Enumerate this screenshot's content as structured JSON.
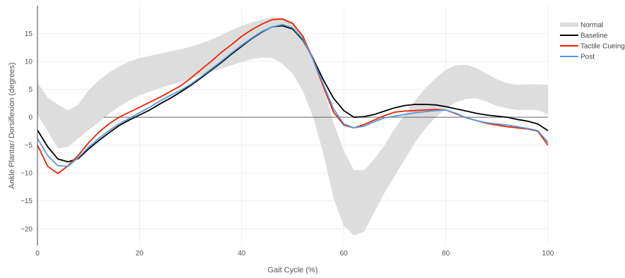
{
  "chart_data": {
    "type": "line",
    "title": "",
    "xlabel": "Gait Cycle (%)",
    "ylabel": "Ankle Plantar/ Dorsiflexion (degrees)",
    "xlim": [
      0,
      100
    ],
    "ylim": [
      -23,
      20
    ],
    "xticks": [
      0,
      20,
      40,
      60,
      80,
      100
    ],
    "yticks": [
      -20,
      -15,
      -10,
      -5,
      0,
      5,
      10,
      15
    ],
    "x_tick_labels": [
      "0",
      "20",
      "40",
      "60",
      "80",
      "100"
    ],
    "y_tick_labels": [
      "−20",
      "−15",
      "−10",
      "−5",
      "0",
      "5",
      "10",
      "15"
    ],
    "grid": true,
    "zero_line": true,
    "legend_position": "top-right",
    "band": {
      "name": "Normal",
      "color": "#dddddd",
      "x": [
        0,
        2,
        4,
        6,
        8,
        10,
        12,
        14,
        16,
        18,
        20,
        22,
        24,
        26,
        28,
        30,
        32,
        34,
        36,
        38,
        40,
        42,
        44,
        46,
        48,
        50,
        52,
        54,
        56,
        58,
        60,
        62,
        64,
        66,
        68,
        70,
        72,
        74,
        76,
        78,
        80,
        82,
        84,
        86,
        88,
        90,
        92,
        94,
        96,
        98,
        100
      ],
      "upper": [
        6.2,
        3.5,
        2.3,
        1.2,
        2.3,
        4.8,
        6.6,
        8.0,
        9.1,
        10.0,
        10.6,
        11.0,
        11.4,
        11.8,
        12.2,
        12.6,
        13.2,
        13.9,
        14.7,
        15.6,
        16.4,
        17.0,
        17.5,
        17.9,
        17.8,
        17.1,
        14.8,
        11.0,
        5.5,
        -1.0,
        -6.0,
        -9.5,
        -9.5,
        -7.5,
        -5.0,
        -2.0,
        0.5,
        3.0,
        5.2,
        7.0,
        8.5,
        9.3,
        9.4,
        8.8,
        7.8,
        6.8,
        6.1,
        5.8,
        5.9,
        5.9,
        5.8
      ],
      "lower": [
        0.5,
        -2.5,
        -5.6,
        -5.3,
        -3.8,
        -2.3,
        -0.9,
        0.6,
        1.9,
        3.0,
        3.9,
        4.6,
        5.2,
        5.8,
        6.3,
        6.9,
        7.5,
        8.1,
        8.7,
        9.3,
        9.9,
        10.4,
        10.7,
        10.6,
        9.6,
        7.8,
        4.7,
        0.0,
        -6.5,
        -14.5,
        -19.5,
        -21.2,
        -20.5,
        -17.0,
        -13.5,
        -10.5,
        -7.5,
        -4.5,
        -2.0,
        0.0,
        1.5,
        2.7,
        3.3,
        3.4,
        2.8,
        2.0,
        1.6,
        1.3,
        1.3,
        1.3,
        0.5
      ]
    },
    "x": [
      0,
      2,
      4,
      6,
      8,
      10,
      12,
      14,
      16,
      18,
      20,
      22,
      24,
      26,
      28,
      30,
      32,
      34,
      36,
      38,
      40,
      42,
      44,
      46,
      48,
      50,
      52,
      54,
      56,
      58,
      60,
      62,
      64,
      66,
      68,
      70,
      72,
      74,
      76,
      78,
      80,
      82,
      84,
      86,
      88,
      90,
      92,
      94,
      96,
      98,
      100
    ],
    "series": [
      {
        "name": "Baseline",
        "color": "#000000",
        "values": [
          -2.3,
          -5.3,
          -7.5,
          -8.0,
          -7.4,
          -5.7,
          -4.2,
          -2.8,
          -1.5,
          -0.5,
          0.4,
          1.3,
          2.4,
          3.4,
          4.5,
          5.7,
          7.0,
          8.4,
          9.8,
          11.3,
          12.7,
          14.1,
          15.3,
          16.2,
          16.4,
          15.8,
          13.8,
          10.5,
          6.7,
          3.4,
          1.2,
          0.0,
          0.1,
          0.5,
          1.1,
          1.7,
          2.1,
          2.3,
          2.3,
          2.2,
          1.9,
          1.5,
          1.1,
          0.7,
          0.4,
          0.2,
          0.0,
          -0.4,
          -0.7,
          -1.2,
          -2.4
        ]
      },
      {
        "name": "Tactile Cueing",
        "color": "#ee2200",
        "values": [
          -5.0,
          -8.8,
          -10.1,
          -8.7,
          -6.8,
          -4.6,
          -2.7,
          -1.2,
          0.0,
          0.9,
          1.8,
          2.7,
          3.6,
          4.6,
          5.6,
          7.0,
          8.5,
          10.0,
          11.6,
          13.0,
          14.5,
          15.7,
          16.7,
          17.5,
          17.6,
          16.8,
          14.5,
          10.3,
          5.5,
          0.9,
          -1.4,
          -1.9,
          -1.3,
          -0.5,
          0.3,
          0.9,
          1.1,
          1.2,
          1.3,
          1.4,
          1.3,
          0.6,
          -0.1,
          -0.6,
          -1.1,
          -1.4,
          -1.7,
          -1.9,
          -2.1,
          -2.5,
          -5.0
        ]
      },
      {
        "name": "Post",
        "color": "#5599dd",
        "values": [
          -3.8,
          -6.9,
          -8.7,
          -8.8,
          -7.2,
          -5.4,
          -3.8,
          -2.4,
          -1.2,
          -0.2,
          0.8,
          1.8,
          2.9,
          3.9,
          4.8,
          5.9,
          7.2,
          8.6,
          10.0,
          11.5,
          12.9,
          14.2,
          15.4,
          16.2,
          16.6,
          16.0,
          14.0,
          10.3,
          5.9,
          1.5,
          -1.2,
          -1.9,
          -1.6,
          -0.8,
          -0.1,
          0.2,
          0.5,
          0.8,
          1.0,
          1.2,
          1.3,
          0.7,
          -0.1,
          -0.6,
          -1.0,
          -1.2,
          -1.4,
          -1.7,
          -2.0,
          -2.4,
          -4.5
        ]
      }
    ]
  }
}
